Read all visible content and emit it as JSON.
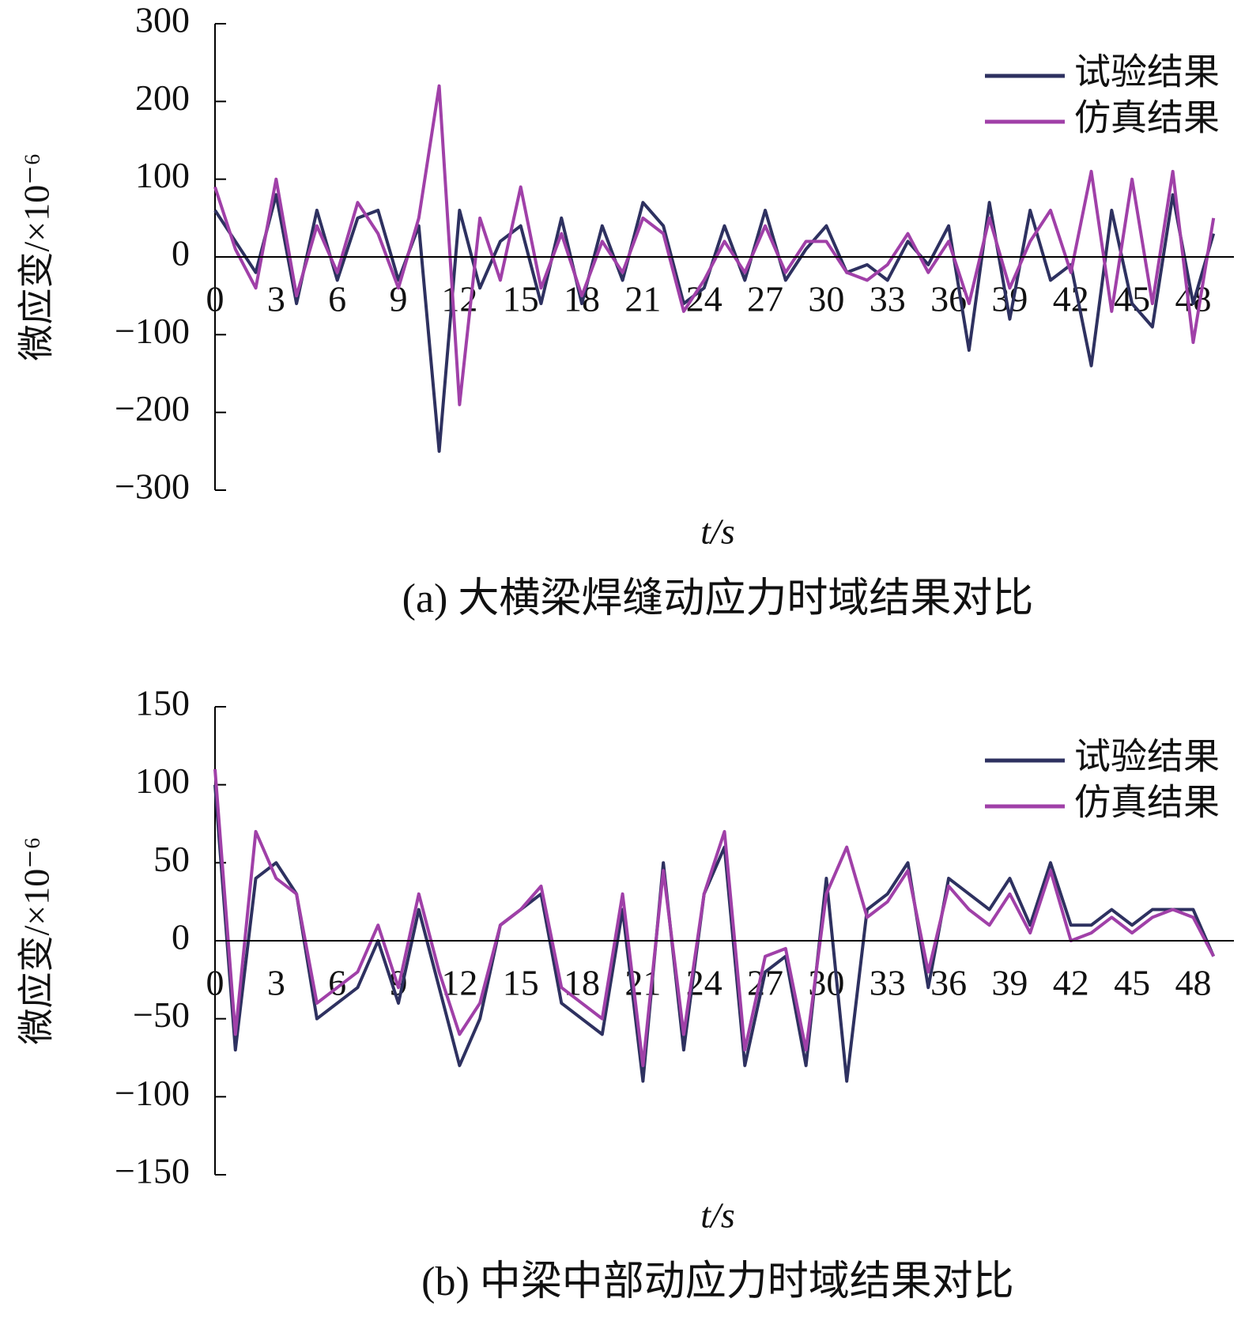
{
  "chart_data": [
    {
      "type": "line",
      "title": "(a) 大横梁焊缝动应力时域结果对比",
      "ylabel": "微应变/×10⁻⁶",
      "xlabel": "t/s",
      "x": [
        0,
        1,
        2,
        3,
        4,
        5,
        6,
        7,
        8,
        9,
        10,
        11,
        12,
        13,
        14,
        15,
        16,
        17,
        18,
        19,
        20,
        21,
        22,
        23,
        24,
        25,
        26,
        27,
        28,
        29,
        30,
        31,
        32,
        33,
        34,
        35,
        36,
        37,
        38,
        39,
        40,
        41,
        42,
        43,
        44,
        45,
        46,
        47,
        48,
        49
      ],
      "xlim": [
        0,
        50
      ],
      "xticks": [
        0,
        3,
        6,
        9,
        12,
        15,
        18,
        21,
        24,
        27,
        30,
        33,
        36,
        39,
        42,
        45,
        48
      ],
      "ylim": [
        -300,
        300
      ],
      "yticks": [
        {
          "value": -300,
          "label": "−300"
        },
        {
          "value": -200,
          "label": "−200"
        },
        {
          "value": -100,
          "label": "−100"
        },
        0,
        100,
        200,
        300
      ],
      "legend": "upper right",
      "series": [
        {
          "name": "试验结果",
          "color": "#2e3160",
          "values": [
            60,
            20,
            -20,
            80,
            -60,
            60,
            -30,
            50,
            60,
            -30,
            40,
            -250,
            60,
            -40,
            20,
            40,
            -60,
            50,
            -60,
            40,
            -30,
            70,
            40,
            -60,
            -40,
            40,
            -30,
            60,
            -30,
            10,
            40,
            -20,
            -10,
            -30,
            20,
            -10,
            40,
            -120,
            70,
            -80,
            60,
            -30,
            -10,
            -140,
            60,
            -60,
            -90,
            80,
            -60,
            30
          ]
        },
        {
          "name": "仿真结果",
          "color": "#a040a8",
          "values": [
            90,
            10,
            -40,
            100,
            -50,
            40,
            -20,
            70,
            30,
            -40,
            50,
            220,
            -190,
            50,
            -30,
            90,
            -40,
            30,
            -50,
            20,
            -20,
            50,
            30,
            -70,
            -30,
            20,
            -20,
            40,
            -20,
            20,
            20,
            -20,
            -30,
            -10,
            30,
            -20,
            20,
            -60,
            50,
            -40,
            20,
            60,
            -20,
            110,
            -70,
            100,
            -60,
            110,
            -110,
            50
          ]
        }
      ]
    },
    {
      "type": "line",
      "title": "(b) 中梁中部动应力时域结果对比",
      "ylabel": "微应变/×10⁻⁶",
      "xlabel": "t/s",
      "x": [
        0,
        1,
        2,
        3,
        4,
        5,
        6,
        7,
        8,
        9,
        10,
        11,
        12,
        13,
        14,
        15,
        16,
        17,
        18,
        19,
        20,
        21,
        22,
        23,
        24,
        25,
        26,
        27,
        28,
        29,
        30,
        31,
        32,
        33,
        34,
        35,
        36,
        37,
        38,
        39,
        40,
        41,
        42,
        43,
        44,
        45,
        46,
        47,
        48,
        49
      ],
      "xlim": [
        0,
        50
      ],
      "xticks": [
        0,
        3,
        6,
        9,
        12,
        15,
        18,
        21,
        24,
        27,
        30,
        33,
        36,
        39,
        42,
        45,
        48
      ],
      "ylim": [
        -150,
        150
      ],
      "yticks": [
        {
          "value": -150,
          "label": "−150"
        },
        {
          "value": -100,
          "label": "−100"
        },
        {
          "value": -50,
          "label": "−50"
        },
        0,
        50,
        100,
        150
      ],
      "legend": "upper right",
      "series": [
        {
          "name": "试验结果",
          "color": "#2e3160",
          "values": [
            100,
            -70,
            40,
            50,
            30,
            -50,
            -40,
            -30,
            0,
            -40,
            20,
            -30,
            -80,
            -50,
            10,
            20,
            30,
            -40,
            -50,
            -60,
            20,
            -90,
            50,
            -70,
            30,
            60,
            -80,
            -20,
            -10,
            -80,
            40,
            -90,
            20,
            30,
            50,
            -30,
            40,
            30,
            20,
            40,
            10,
            50,
            10,
            10,
            20,
            10,
            20,
            20,
            20,
            -10
          ]
        },
        {
          "name": "仿真结果",
          "color": "#a040a8",
          "values": [
            110,
            -60,
            70,
            40,
            30,
            -40,
            -30,
            -20,
            10,
            -30,
            30,
            -20,
            -60,
            -40,
            10,
            20,
            35,
            -30,
            -40,
            -50,
            30,
            -80,
            45,
            -60,
            30,
            70,
            -70,
            -10,
            -5,
            -70,
            30,
            60,
            15,
            25,
            45,
            -20,
            35,
            20,
            10,
            30,
            5,
            45,
            0,
            5,
            15,
            5,
            15,
            20,
            15,
            -10
          ]
        }
      ]
    }
  ]
}
